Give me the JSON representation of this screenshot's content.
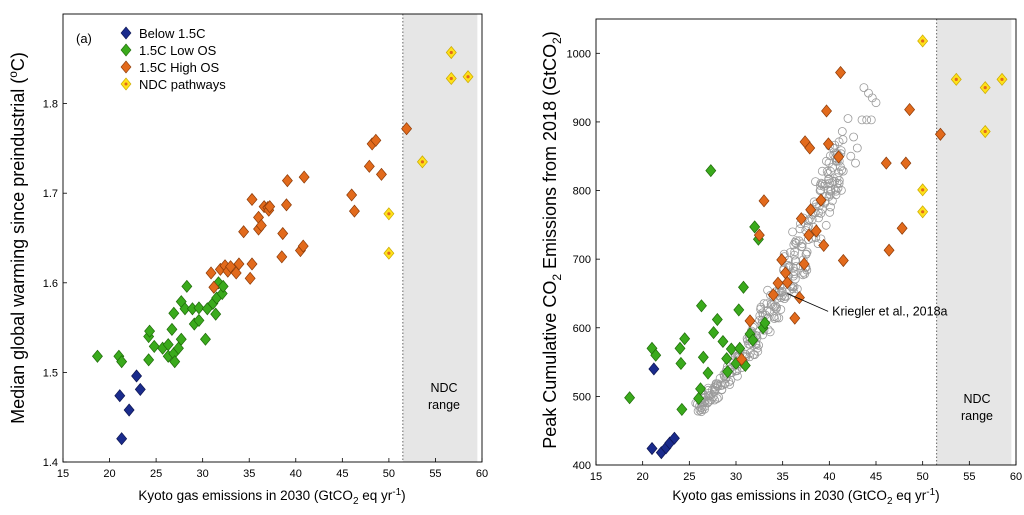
{
  "chart_data": [
    {
      "type": "scatter",
      "panel_label": "(a)",
      "xlabel": "Kyoto gas emissions in 2030 (GtCO",
      "xlabel_sub": "2",
      "xlabel_tail": " eq yr",
      "xlabel_sup": "-1",
      "xlabel_close": ")",
      "ylabel": "Median global warming since preindustrial (",
      "ylabel_sup": "o",
      "ylabel_tail": "C)",
      "xlim": [
        15,
        60
      ],
      "ylim": [
        1.4,
        1.9
      ],
      "xticks": [
        "15",
        "20",
        "25",
        "30",
        "35",
        "40",
        "45",
        "50",
        "55",
        "60"
      ],
      "yticks": [
        "1.4",
        "1.5",
        "1.6",
        "1.7",
        "1.8"
      ],
      "grid": false,
      "legend_position": "top-left",
      "shaded_region": {
        "x": [
          51.5,
          59.5
        ],
        "label_lines": [
          "NDC",
          "range"
        ]
      },
      "series": [
        {
          "name": "Below 1.5C",
          "marker": "diamond",
          "color": "#1a2b8c",
          "points": [
            [
              21.1,
              1.474
            ],
            [
              22.9,
              1.496
            ],
            [
              23.3,
              1.481
            ],
            [
              22.1,
              1.458
            ],
            [
              21.3,
              1.426
            ]
          ]
        },
        {
          "name": "1.5C Low OS",
          "marker": "diamond",
          "color": "#3aaa1c",
          "points": [
            [
              18.7,
              1.518
            ],
            [
              21.0,
              1.518
            ],
            [
              21.3,
              1.512
            ],
            [
              24.2,
              1.54
            ],
            [
              24.3,
              1.546
            ],
            [
              24.2,
              1.514
            ],
            [
              24.8,
              1.529
            ],
            [
              25.7,
              1.527
            ],
            [
              26.3,
              1.531
            ],
            [
              26.3,
              1.518
            ],
            [
              26.7,
              1.548
            ],
            [
              26.9,
              1.566
            ],
            [
              26.9,
              1.521
            ],
            [
              27.0,
              1.512
            ],
            [
              27.4,
              1.527
            ],
            [
              27.7,
              1.537
            ],
            [
              27.7,
              1.579
            ],
            [
              28.1,
              1.571
            ],
            [
              28.3,
              1.596
            ],
            [
              28.9,
              1.571
            ],
            [
              29.1,
              1.554
            ],
            [
              29.6,
              1.572
            ],
            [
              29.6,
              1.558
            ],
            [
              30.3,
              1.537
            ],
            [
              30.5,
              1.571
            ],
            [
              31.1,
              1.577
            ],
            [
              31.4,
              1.565
            ],
            [
              31.5,
              1.583
            ],
            [
              31.7,
              1.6
            ],
            [
              32.1,
              1.588
            ],
            [
              32.2,
              1.596
            ]
          ]
        },
        {
          "name": "1.5C High OS",
          "marker": "diamond",
          "color": "#e26a1c",
          "points": [
            [
              30.9,
              1.611
            ],
            [
              31.2,
              1.595
            ],
            [
              31.9,
              1.615
            ],
            [
              32.4,
              1.619
            ],
            [
              32.7,
              1.613
            ],
            [
              33.0,
              1.618
            ],
            [
              33.6,
              1.611
            ],
            [
              33.9,
              1.621
            ],
            [
              35.1,
              1.605
            ],
            [
              35.3,
              1.621
            ],
            [
              34.4,
              1.657
            ],
            [
              35.3,
              1.693
            ],
            [
              36.0,
              1.66
            ],
            [
              36.0,
              1.673
            ],
            [
              36.3,
              1.664
            ],
            [
              36.6,
              1.685
            ],
            [
              37.0,
              1.684
            ],
            [
              37.1,
              1.681
            ],
            [
              37.2,
              1.685
            ],
            [
              38.5,
              1.629
            ],
            [
              38.6,
              1.655
            ],
            [
              39.0,
              1.687
            ],
            [
              39.1,
              1.714
            ],
            [
              40.5,
              1.636
            ],
            [
              40.8,
              1.641
            ],
            [
              40.9,
              1.718
            ],
            [
              46.0,
              1.698
            ],
            [
              46.3,
              1.68
            ],
            [
              47.9,
              1.73
            ],
            [
              48.2,
              1.755
            ],
            [
              48.6,
              1.759
            ],
            [
              49.2,
              1.721
            ],
            [
              51.9,
              1.772
            ]
          ]
        },
        {
          "name": "NDC pathways",
          "marker": "diamond",
          "color": "#ffe11a",
          "center_color": "#e26a1c",
          "points": [
            [
              56.7,
              1.857
            ],
            [
              56.7,
              1.828
            ],
            [
              58.5,
              1.83
            ],
            [
              53.6,
              1.735
            ],
            [
              50.0,
              1.677
            ],
            [
              50.0,
              1.633
            ]
          ]
        }
      ]
    },
    {
      "type": "scatter",
      "xlabel": "Kyoto gas emissions in 2030 (GtCO",
      "xlabel_sub": "2",
      "xlabel_tail": " eq yr",
      "xlabel_sup": "-1",
      "xlabel_close": ")",
      "ylabel": "Peak Cumulative CO",
      "ylabel_sub": "2",
      "ylabel_mid": " Emissions from 2018 (GtCO",
      "ylabel_sub2": "2",
      "ylabel_tail": ")",
      "xlim": [
        15,
        60
      ],
      "ylim": [
        400,
        1050
      ],
      "xticks": [
        "15",
        "20",
        "25",
        "30",
        "35",
        "40",
        "45",
        "50",
        "55",
        "60"
      ],
      "yticks": [
        "400",
        "500",
        "600",
        "700",
        "800",
        "900",
        "1000"
      ],
      "grid": false,
      "shaded_region": {
        "x": [
          51.5,
          59.5
        ],
        "label_lines": [
          "NDC",
          "range"
        ]
      },
      "annotation": {
        "text": "Kriegler et al., 2018a",
        "point": [
          35.5,
          650
        ],
        "text_at": [
          40.3,
          618
        ]
      },
      "background_cloud": {
        "marker": "open-circle",
        "color": "#9a9a9a",
        "band": [
          [
            26,
            475,
            495
          ],
          [
            28,
            498,
            525
          ],
          [
            30,
            522,
            565
          ],
          [
            32,
            560,
            610
          ],
          [
            34,
            600,
            665
          ],
          [
            36,
            650,
            730
          ],
          [
            38,
            700,
            790
          ],
          [
            40,
            760,
            860
          ],
          [
            41.5,
            820,
            900
          ]
        ],
        "count": 300,
        "extra": [
          [
            42.3,
            850
          ],
          [
            42.8,
            840
          ],
          [
            43.0,
            862
          ],
          [
            42.6,
            878
          ],
          [
            42.0,
            905
          ],
          [
            43.5,
            903
          ],
          [
            44.0,
            903
          ],
          [
            44.5,
            903
          ],
          [
            43.7,
            950
          ],
          [
            44.2,
            942
          ],
          [
            44.6,
            935
          ],
          [
            45.0,
            928
          ]
        ]
      },
      "series": [
        {
          "name": "Below 1.5C",
          "marker": "diamond",
          "color": "#1a2b8c",
          "points": [
            [
              21.2,
              540
            ],
            [
              21.0,
              424
            ],
            [
              22.0,
              418
            ],
            [
              22.5,
              425
            ],
            [
              22.9,
              432
            ],
            [
              23.4,
              439
            ]
          ]
        },
        {
          "name": "1.5C Low OS",
          "marker": "diamond",
          "color": "#3aaa1c",
          "points": [
            [
              18.6,
              498
            ],
            [
              21.0,
              570
            ],
            [
              21.4,
              560
            ],
            [
              24.0,
              570
            ],
            [
              24.1,
              548
            ],
            [
              24.2,
              481
            ],
            [
              24.5,
              584
            ],
            [
              26.0,
              497
            ],
            [
              26.2,
              511
            ],
            [
              26.3,
              632
            ],
            [
              26.5,
              557
            ],
            [
              27.0,
              534
            ],
            [
              27.3,
              829
            ],
            [
              27.6,
              593
            ],
            [
              28.0,
              612
            ],
            [
              28.6,
              580
            ],
            [
              29.0,
              555
            ],
            [
              29.1,
              536
            ],
            [
              29.5,
              569
            ],
            [
              30.0,
              548
            ],
            [
              30.3,
              626
            ],
            [
              30.4,
              570
            ],
            [
              30.8,
              659
            ],
            [
              31.0,
              545
            ],
            [
              31.5,
              591
            ],
            [
              32.0,
              747
            ],
            [
              32.4,
              729
            ],
            [
              32.9,
              600
            ],
            [
              33.1,
              607
            ],
            [
              31.8,
              582
            ]
          ]
        },
        {
          "name": "1.5C High OS",
          "marker": "diamond",
          "color": "#e26a1c",
          "points": [
            [
              30.6,
              554
            ],
            [
              31.5,
              610
            ],
            [
              32.5,
              735
            ],
            [
              33.0,
              785
            ],
            [
              34.0,
              648
            ],
            [
              34.5,
              665
            ],
            [
              34.9,
              699
            ],
            [
              35.3,
              680
            ],
            [
              35.5,
              666
            ],
            [
              36.3,
              614
            ],
            [
              36.8,
              644
            ],
            [
              37.0,
              759
            ],
            [
              37.4,
              871
            ],
            [
              37.9,
              862
            ],
            [
              37.8,
              735
            ],
            [
              38.0,
              772
            ],
            [
              37.3,
              693
            ],
            [
              38.6,
              741
            ],
            [
              39.1,
              786
            ],
            [
              39.4,
              720
            ],
            [
              39.7,
              916
            ],
            [
              39.9,
              868
            ],
            [
              41.0,
              849
            ],
            [
              41.2,
              972
            ],
            [
              41.5,
              698
            ],
            [
              46.1,
              840
            ],
            [
              46.4,
              713
            ],
            [
              47.8,
              745
            ],
            [
              48.2,
              840
            ],
            [
              48.6,
              918
            ],
            [
              51.9,
              882
            ]
          ]
        },
        {
          "name": "NDC pathways",
          "marker": "diamond",
          "color": "#ffe11a",
          "center_color": "#e26a1c",
          "points": [
            [
              50.0,
              1018
            ],
            [
              53.6,
              962
            ],
            [
              56.7,
              950
            ],
            [
              58.5,
              962
            ],
            [
              56.7,
              886
            ],
            [
              50.0,
              801
            ],
            [
              50.0,
              769
            ]
          ]
        }
      ]
    }
  ]
}
